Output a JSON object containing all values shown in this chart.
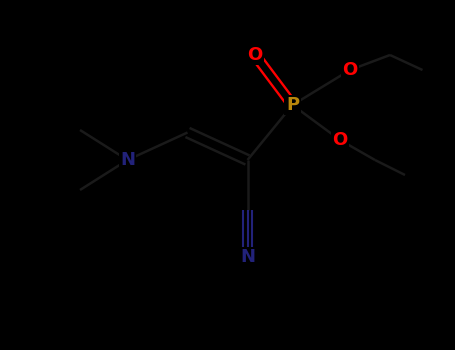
{
  "bg_color": "#000000",
  "bond_color": "#1a1a1a",
  "P_color": "#b8860b",
  "O_color": "#ff0000",
  "N_color": "#22227a",
  "figsize": [
    4.55,
    3.5
  ],
  "dpi": 100,
  "xlim": [
    0,
    9.1
  ],
  "ylim": [
    0,
    7.0
  ]
}
